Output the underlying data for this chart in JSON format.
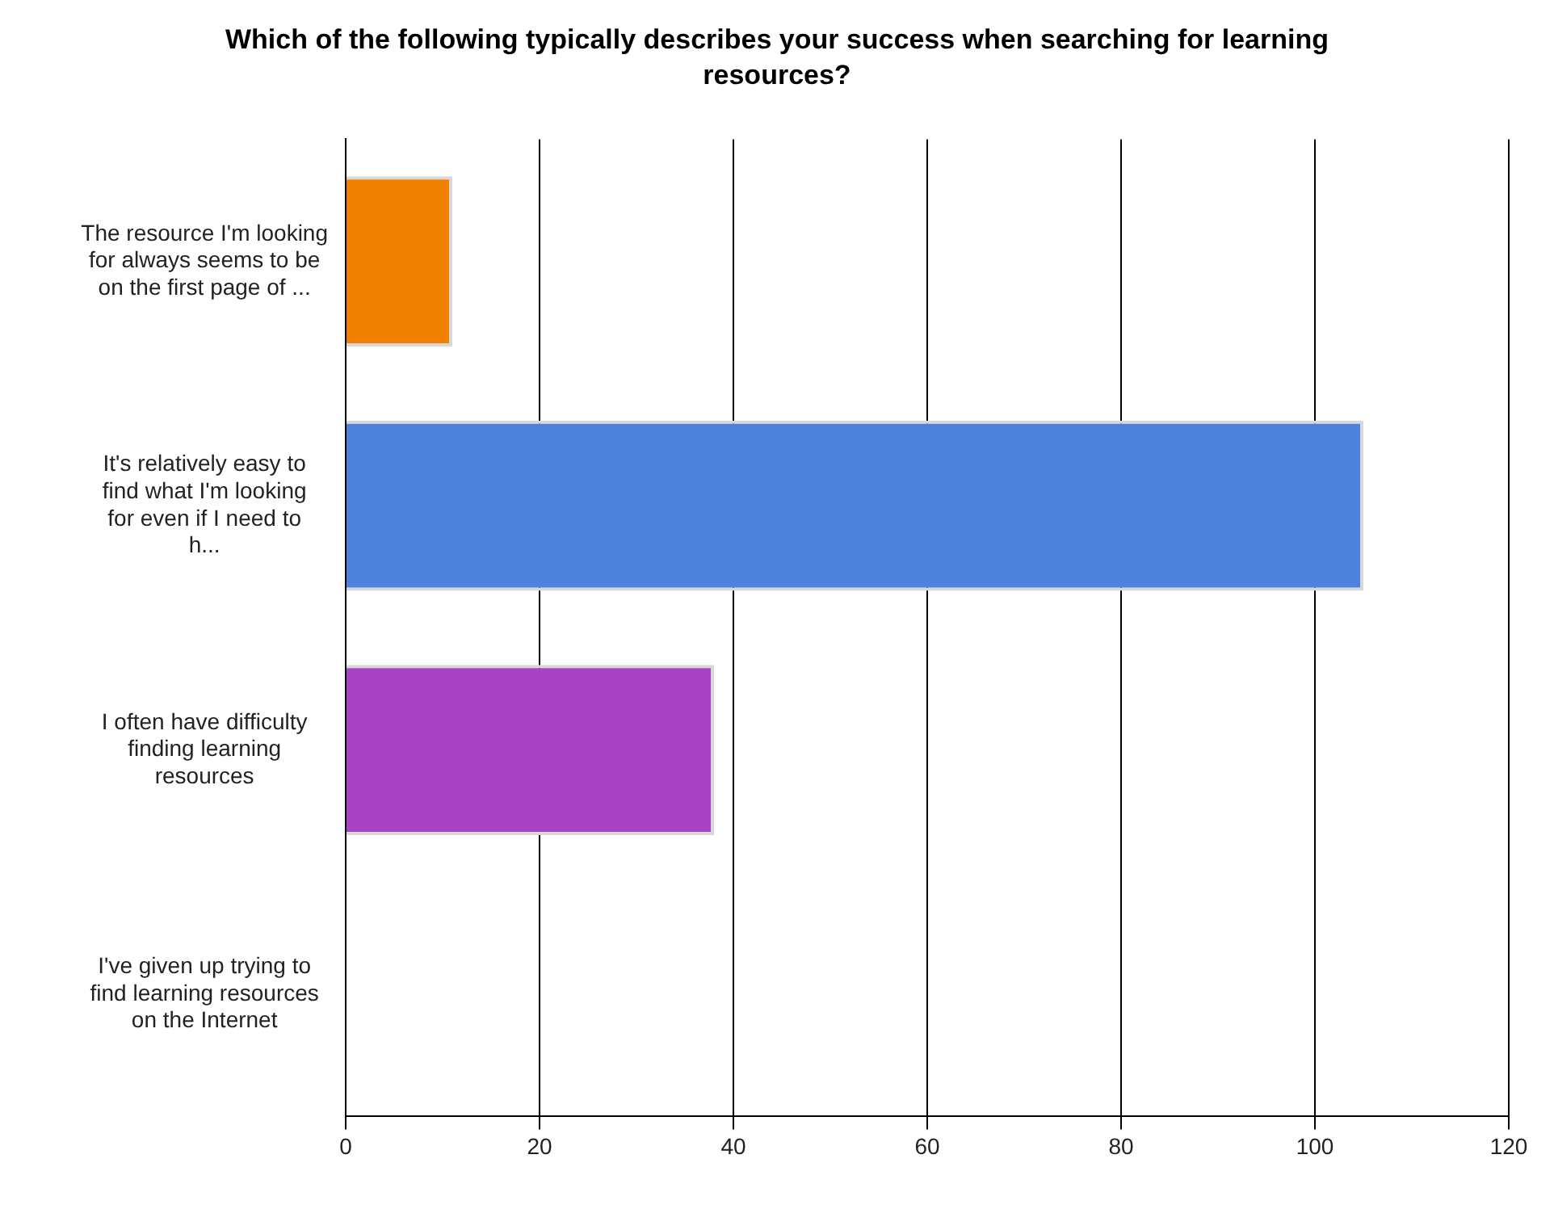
{
  "chart_data": {
    "type": "bar",
    "orientation": "horizontal",
    "title": "Which of the following typically describes your success when searching for learning resources?",
    "categories": [
      "The resource I'm looking for always seems to be on the first page of ...",
      "It's relatively easy to find what I'm looking for even if I need to h...",
      "I often have difficulty finding learning resources",
      "I've given up trying to find learning resources on the Internet"
    ],
    "values": [
      11,
      105,
      38,
      0
    ],
    "colors": [
      "#f08000",
      "#4f82dc",
      "#a743c4",
      "#808080"
    ],
    "xlim": [
      0,
      120
    ],
    "xticks": [
      0,
      20,
      40,
      60,
      80,
      100,
      120
    ],
    "grid": "x",
    "legend": false
  }
}
